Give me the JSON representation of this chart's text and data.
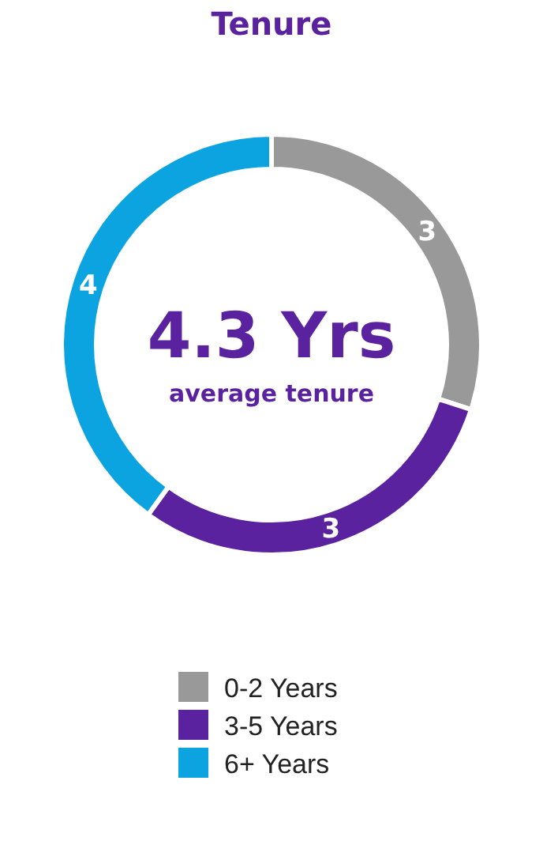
{
  "chart_data": {
    "type": "donut",
    "title": "Tenure",
    "categories": [
      "0-2 Years",
      "3-5 Years",
      "6+ Years"
    ],
    "values": [
      3,
      3,
      4
    ],
    "colors": [
      "#999999",
      "#5b22a0",
      "#0ca4e0"
    ],
    "data_labels": true,
    "legend": "bottom",
    "annotations": [
      "4.3 Yrs",
      "average tenure"
    ]
  }
}
